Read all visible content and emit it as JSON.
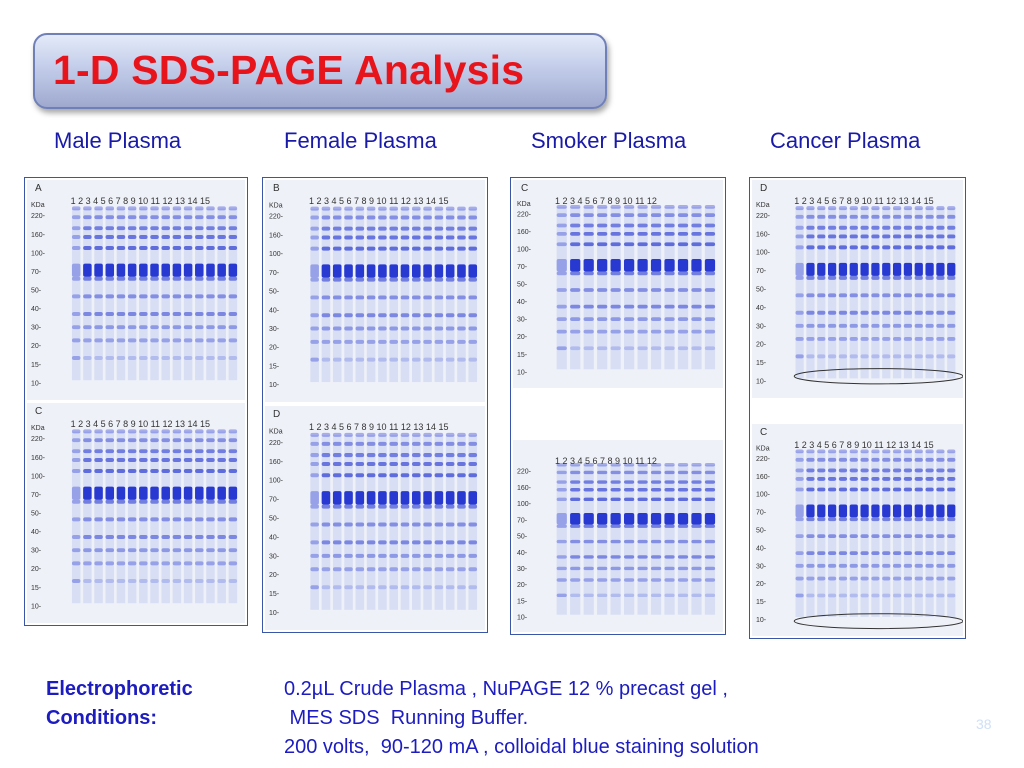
{
  "title": "1-D SDS-PAGE Analysis",
  "columns": [
    "Male Plasma",
    "Female Plasma",
    "Smoker Plasma",
    "Cancer Plasma"
  ],
  "gels": [
    {
      "letter": "A",
      "markers": [
        "KDa",
        "220-",
        "160-",
        "100-",
        "70-",
        "50-",
        "40-",
        "30-",
        "20-",
        "15-",
        "10-"
      ],
      "lanes": "1 2 3 4 5 6 7 8 9 10 11 12 13 14 15"
    },
    {
      "letter": "C",
      "markers": [
        "KDa",
        "220-",
        "160-",
        "100-",
        "70-",
        "50-",
        "40-",
        "30-",
        "20-",
        "15-",
        "10-"
      ],
      "lanes": "1 2 3 4 5 6 7 8 9 10 11 12 13 14 15"
    },
    {
      "letter": "B",
      "markers": [
        "KDa",
        "220-",
        "160-",
        "100-",
        "70-",
        "50-",
        "40-",
        "30-",
        "20-",
        "15-",
        "10-"
      ],
      "lanes": "1 2 3 4 5 6 7 8 9 10 11 12 13 14 15"
    },
    {
      "letter": "D",
      "markers": [
        "KDa",
        "220-",
        "160-",
        "100-",
        "70-",
        "50-",
        "40-",
        "30-",
        "20-",
        "15-",
        "10-"
      ],
      "lanes": "1 2 3 4 5 6 7 8 9 10 11 12 13 14 15"
    },
    {
      "letter": "C",
      "markers": [
        "KDa",
        "220-",
        "160-",
        "100-",
        "70-",
        "50-",
        "40-",
        "30-",
        "20-",
        "15-",
        "10-"
      ],
      "lanes": "1 2 3 4 5 6 7 8 9 10 11 12"
    },
    {
      "letter": "",
      "markers": [
        "220-",
        "160-",
        "100-",
        "70-",
        "50-",
        "40-",
        "30-",
        "20-",
        "15-",
        "10-"
      ],
      "lanes": "1 2 3 4 5 6 7 8 9 10 11 12"
    },
    {
      "letter": "D",
      "markers": [
        "KDa",
        "220-",
        "160-",
        "100-",
        "70-",
        "50-",
        "40-",
        "30-",
        "20-",
        "15-",
        "10-"
      ],
      "lanes": "1 2 3 4 5 6 7 8 9 10 11 12 13 14 15"
    },
    {
      "letter": "C",
      "markers": [
        "KDa",
        "220-",
        "160-",
        "100-",
        "70-",
        "50-",
        "40-",
        "30-",
        "20-",
        "15-",
        "10-"
      ],
      "lanes": "1 2 3 4 5 6 7 8 9 10 11 12 13 14 15"
    }
  ],
  "conditions": {
    "label_line1": "Electrophoretic",
    "label_line2": "Conditions:",
    "line1": "0.2µL Crude Plasma , NuPAGE 12 % precast gel ,",
    "line2": " MES SDS  Running Buffer.",
    "line3": "200 volts,  90-120 mA , colloidal blue staining solution"
  },
  "slide_number": "38",
  "colors": {
    "title": "#e8141c",
    "text": "#1c1cc0",
    "gel_band": "#1f2fd0"
  }
}
